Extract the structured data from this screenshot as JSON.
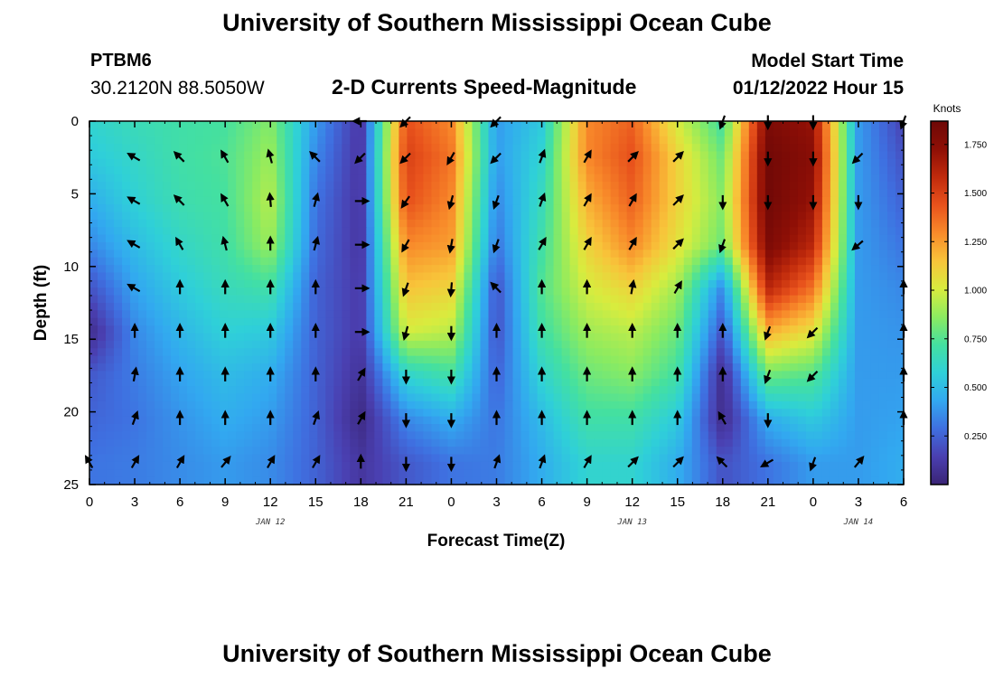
{
  "header": {
    "title": "University of Southern Mississippi Ocean Cube",
    "station": "PTBM6",
    "coords": "30.2120N  88.5050W",
    "plot_title": "2-D Currents Speed-Magnitude",
    "model_label": "Model Start Time",
    "model_time": "01/12/2022 Hour 15"
  },
  "footer": {
    "title": "University of Southern Mississippi Ocean Cube"
  },
  "chart_data": {
    "type": "heatmap",
    "title": "2-D Currents Speed-Magnitude",
    "xlabel": "Forecast Time(Z)",
    "ylabel": "Depth (ft)",
    "x_tick_labels": [
      "0",
      "3",
      "6",
      "9",
      "12",
      "15",
      "18",
      "21",
      "0",
      "3",
      "6",
      "9",
      "12",
      "15",
      "18",
      "21",
      "0",
      "3",
      "6"
    ],
    "x_range_hours": [
      0,
      54
    ],
    "x_date_labels": [
      {
        "label": "JAN 12",
        "hour": 12
      },
      {
        "label": "JAN 13",
        "hour": 36
      },
      {
        "label": "JAN 14",
        "hour": 51
      }
    ],
    "y_ticks": [
      0,
      5,
      10,
      15,
      20,
      25
    ],
    "ylim": [
      0,
      25
    ],
    "colorbar": {
      "title": "Knots",
      "ticks": [
        "0.250",
        "0.500",
        "0.750",
        "1.000",
        "1.250",
        "1.500",
        "1.750"
      ],
      "range": [
        0.0,
        1.87
      ],
      "colors": [
        "#3a2475",
        "#4a3fb0",
        "#3f6fe0",
        "#32a8f0",
        "#2fd0d8",
        "#44e0a0",
        "#8ceb60",
        "#d8ec3e",
        "#f8c43a",
        "#f88a2a",
        "#e8521c",
        "#c02a0c",
        "#8e0f06",
        "#6e0806"
      ]
    },
    "depth_levels_ft": [
      0,
      2.5,
      5.5,
      8.5,
      11.5,
      14.5,
      17.5,
      20.5,
      23.5
    ],
    "speed_grid_knots": [
      [
        0.6,
        0.66,
        0.7,
        0.72,
        0.85,
        0.4,
        0.1,
        1.45,
        1.3,
        0.4,
        0.55,
        1.3,
        1.4,
        1.0,
        0.7,
        1.8,
        1.7,
        0.4,
        0.15
      ],
      [
        0.55,
        0.62,
        0.7,
        0.74,
        0.9,
        0.35,
        0.1,
        1.5,
        1.35,
        0.4,
        0.6,
        1.3,
        1.45,
        1.1,
        0.8,
        1.85,
        1.75,
        0.4,
        0.2
      ],
      [
        0.45,
        0.58,
        0.68,
        0.72,
        0.95,
        0.3,
        0.1,
        1.45,
        1.3,
        0.35,
        0.65,
        1.2,
        1.4,
        1.1,
        0.85,
        1.85,
        1.7,
        0.4,
        0.25
      ],
      [
        0.35,
        0.5,
        0.62,
        0.7,
        0.9,
        0.28,
        0.1,
        1.3,
        1.25,
        0.3,
        0.7,
        1.1,
        1.3,
        1.05,
        0.8,
        1.8,
        1.6,
        0.4,
        0.3
      ],
      [
        0.2,
        0.42,
        0.55,
        0.65,
        0.7,
        0.25,
        0.12,
        1.15,
        1.1,
        0.2,
        0.75,
        1.0,
        1.1,
        0.9,
        0.35,
        1.6,
        1.35,
        0.4,
        0.35
      ],
      [
        0.05,
        0.35,
        0.48,
        0.58,
        0.55,
        0.25,
        0.12,
        1.0,
        0.95,
        0.2,
        0.7,
        0.9,
        0.95,
        0.8,
        0.2,
        1.2,
        1.05,
        0.4,
        0.38
      ],
      [
        0.22,
        0.32,
        0.42,
        0.5,
        0.45,
        0.25,
        0.08,
        0.6,
        0.7,
        0.25,
        0.6,
        0.8,
        0.85,
        0.7,
        0.05,
        0.8,
        0.75,
        0.4,
        0.4
      ],
      [
        0.26,
        0.3,
        0.38,
        0.45,
        0.4,
        0.25,
        0.04,
        0.35,
        0.45,
        0.3,
        0.5,
        0.7,
        0.7,
        0.55,
        0.05,
        0.45,
        0.55,
        0.4,
        0.42
      ],
      [
        0.3,
        0.32,
        0.36,
        0.4,
        0.36,
        0.25,
        0.1,
        0.22,
        0.3,
        0.32,
        0.45,
        0.6,
        0.6,
        0.45,
        0.2,
        0.3,
        0.4,
        0.4,
        0.45
      ]
    ],
    "arrow_rows": [
      {
        "depth_ft": 0,
        "dirs_deg": [
          null,
          null,
          null,
          null,
          null,
          null,
          270,
          225,
          null,
          225,
          null,
          null,
          null,
          null,
          200,
          180,
          180,
          null,
          200
        ]
      },
      {
        "depth_ft": 2.5,
        "dirs_deg": [
          null,
          300,
          315,
          330,
          345,
          315,
          225,
          225,
          210,
          225,
          20,
          30,
          45,
          45,
          null,
          180,
          180,
          225,
          null
        ]
      },
      {
        "depth_ft": 5.5,
        "dirs_deg": [
          null,
          300,
          315,
          330,
          355,
          15,
          90,
          215,
          195,
          200,
          20,
          30,
          30,
          45,
          180,
          180,
          180,
          180,
          null
        ]
      },
      {
        "depth_ft": 8.5,
        "dirs_deg": [
          null,
          300,
          330,
          345,
          0,
          15,
          90,
          210,
          190,
          200,
          30,
          30,
          30,
          45,
          200,
          null,
          null,
          230,
          null
        ]
      },
      {
        "depth_ft": 11.5,
        "dirs_deg": [
          null,
          300,
          0,
          0,
          0,
          0,
          90,
          200,
          185,
          315,
          0,
          0,
          10,
          30,
          null,
          null,
          null,
          null,
          0
        ]
      },
      {
        "depth_ft": 14.5,
        "dirs_deg": [
          null,
          0,
          0,
          0,
          0,
          0,
          90,
          195,
          180,
          0,
          0,
          0,
          0,
          0,
          0,
          200,
          225,
          null,
          0
        ]
      },
      {
        "depth_ft": 17.5,
        "dirs_deg": [
          null,
          10,
          0,
          0,
          0,
          0,
          30,
          180,
          180,
          0,
          0,
          0,
          0,
          0,
          0,
          200,
          225,
          null,
          0
        ]
      },
      {
        "depth_ft": 20.5,
        "dirs_deg": [
          null,
          20,
          0,
          0,
          0,
          20,
          30,
          180,
          180,
          0,
          0,
          0,
          0,
          0,
          330,
          180,
          null,
          null,
          0
        ]
      },
      {
        "depth_ft": 23.5,
        "dirs_deg": [
          330,
          30,
          30,
          40,
          30,
          30,
          0,
          180,
          180,
          20,
          20,
          30,
          45,
          45,
          315,
          240,
          200,
          40,
          null
        ]
      }
    ]
  }
}
